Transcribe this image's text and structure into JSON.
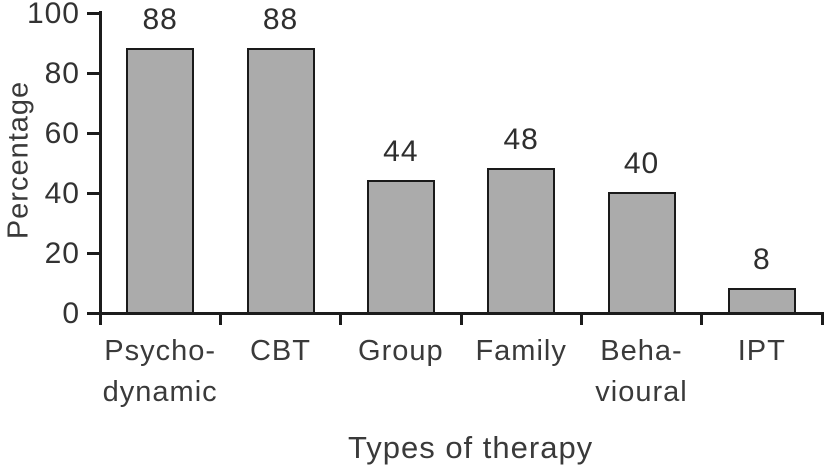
{
  "chart_data": {
    "type": "bar",
    "title": "",
    "xlabel": "Types of therapy",
    "ylabel": "Percentage",
    "categories": [
      "Psychodynamic",
      "CBT",
      "Group",
      "Family",
      "Behavioural",
      "IPT"
    ],
    "category_display_lines": [
      [
        "Psycho-",
        "dynamic"
      ],
      [
        "CBT"
      ],
      [
        "Group"
      ],
      [
        "Family"
      ],
      [
        "Beha-",
        "vioural"
      ],
      [
        "IPT"
      ]
    ],
    "values": [
      88,
      88,
      44,
      48,
      40,
      8
    ],
    "bar_value_labels": [
      "88",
      "88",
      "44",
      "48",
      "40",
      "8"
    ],
    "ylim": [
      0,
      100
    ],
    "yticks": [
      0,
      20,
      40,
      60,
      80,
      100
    ],
    "grid": false,
    "legend_position": "none",
    "colors": {
      "bar_fill": "#ababab",
      "bar_border": "#1a1a1a",
      "axis": "#1c1c1c",
      "text": "#333333",
      "background": "#ffffff"
    }
  }
}
